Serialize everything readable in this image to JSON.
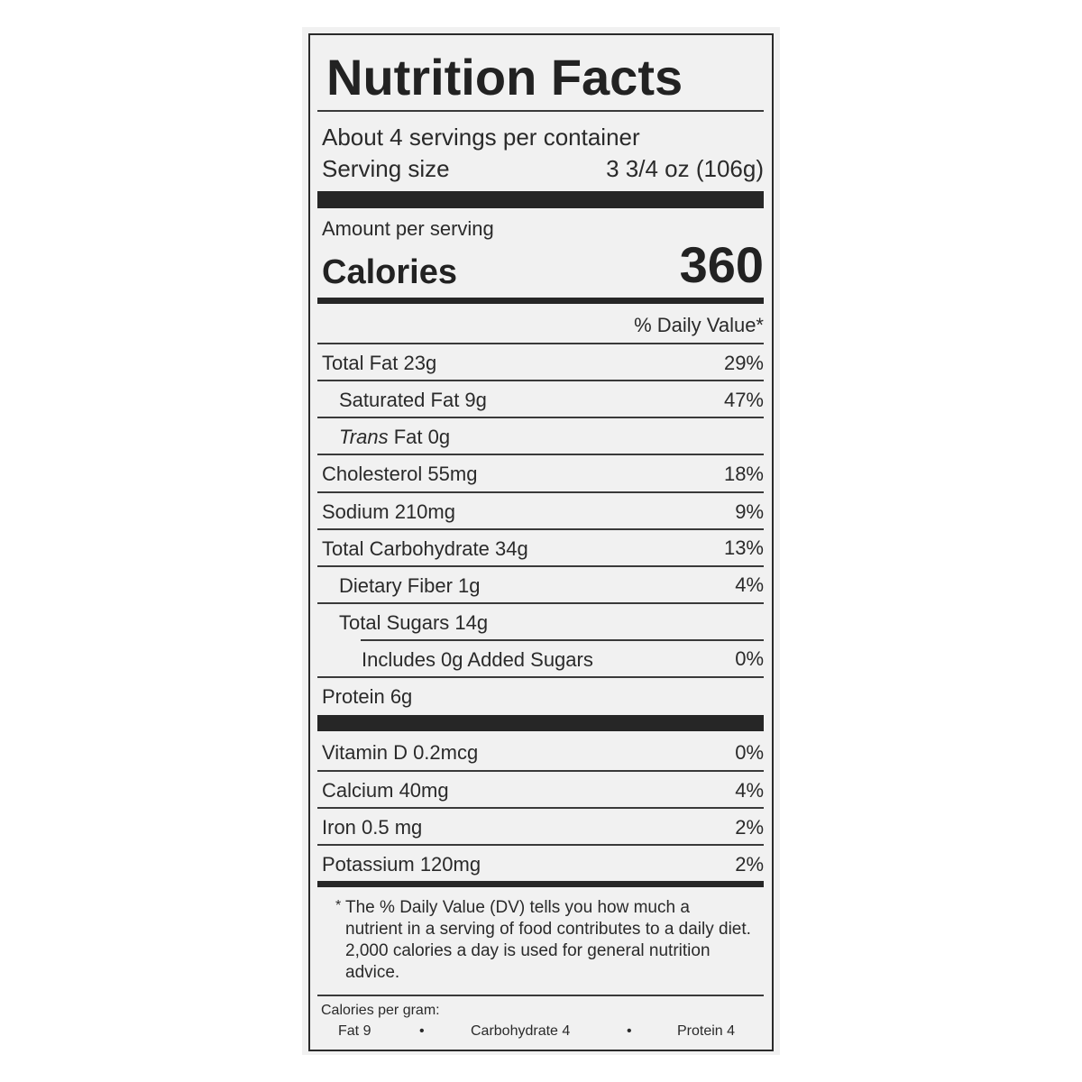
{
  "title": "Nutrition Facts",
  "servings_per_container": "About 4 servings per container",
  "serving_size_label": "Serving size",
  "serving_size_value": "3 3/4 oz (106g)",
  "amount_per_serving": "Amount per serving",
  "calories_label": "Calories",
  "calories_value": "360",
  "daily_value_header": "% Daily Value*",
  "nutrients": [
    {
      "label": "Total Fat 23g",
      "dv": "29%"
    },
    {
      "label": "Saturated Fat 9g",
      "dv": "47%"
    },
    {
      "label_italic": "Trans",
      "label": " Fat 0g",
      "dv": ""
    },
    {
      "label": "Cholesterol 55mg",
      "dv": "18%"
    },
    {
      "label": "Sodium 210mg",
      "dv": "9%"
    },
    {
      "label": "Total Carbohydrate 34g",
      "dv": "13%"
    },
    {
      "label": "Dietary Fiber 1g",
      "dv": "4%"
    },
    {
      "label": "Total Sugars 14g",
      "dv": ""
    },
    {
      "label": "Includes 0g Added Sugars",
      "dv": "0%"
    },
    {
      "label": "Protein 6g",
      "dv": ""
    }
  ],
  "vitamins": [
    {
      "label": "Vitamin D 0.2mcg",
      "dv": "0%"
    },
    {
      "label": "Calcium 40mg",
      "dv": "4%"
    },
    {
      "label": "Iron 0.5 mg",
      "dv": "2%"
    },
    {
      "label": "Potassium 120mg",
      "dv": "2%"
    }
  ],
  "footnote_star": "*",
  "footnote": "The % Daily Value (DV) tells you how much a nutrient in a serving of food contributes to a daily diet. 2,000 calories a day is used for general nutrition advice.",
  "calories_per_gram": {
    "label": "Calories per gram:",
    "fat": "Fat 9",
    "carbohydrate": "Carbohydrate 4",
    "protein": "Protein 4",
    "separator": "•"
  }
}
